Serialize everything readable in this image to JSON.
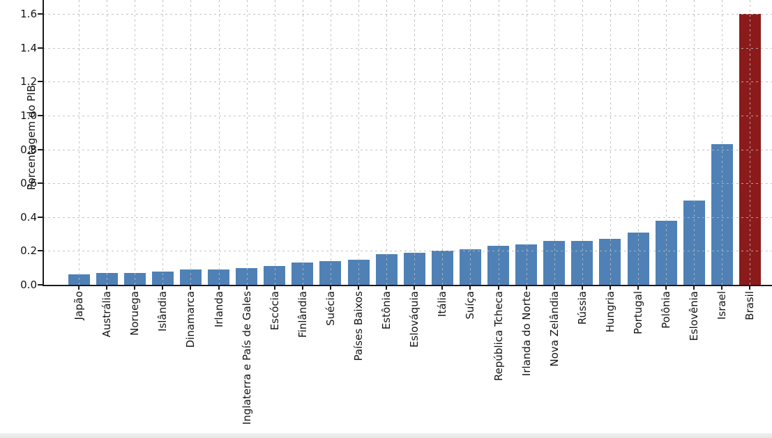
{
  "chart_data": {
    "type": "bar",
    "title": "",
    "xlabel": "",
    "ylabel": "Porcentagem do PIB",
    "categories": [
      "Japão",
      "Austrália",
      "Noruega",
      "Islândia",
      "Dinamarca",
      "Irlanda",
      "Inglaterra e País de Gales",
      "Escócia",
      "Finlândia",
      "Suécia",
      "Países Baixos",
      "Estônia",
      "Eslováquia",
      "Itália",
      "Suíça",
      "República Tcheca",
      "Irlanda do Norte",
      "Nova Zelândia",
      "Rússia",
      "Hungria",
      "Portugal",
      "Polônia",
      "Eslovênia",
      "Israel",
      "Brasil"
    ],
    "values": [
      0.06,
      0.07,
      0.07,
      0.08,
      0.09,
      0.09,
      0.1,
      0.11,
      0.13,
      0.14,
      0.15,
      0.18,
      0.19,
      0.2,
      0.21,
      0.23,
      0.24,
      0.26,
      0.26,
      0.27,
      0.31,
      0.38,
      0.5,
      0.83,
      1.6
    ],
    "ytick_labels": [
      "0.0",
      "0.2",
      "0.4",
      "0.6",
      "0.8",
      "1.0",
      "1.2",
      "1.4",
      "1.6"
    ],
    "ylim": [
      0,
      1.68
    ],
    "bar_color": "#4F81B6",
    "highlight_color": "#8B1B1B",
    "highlight_category": "Brasil",
    "grid": "dashed-both-over-bars",
    "legend": "none"
  }
}
